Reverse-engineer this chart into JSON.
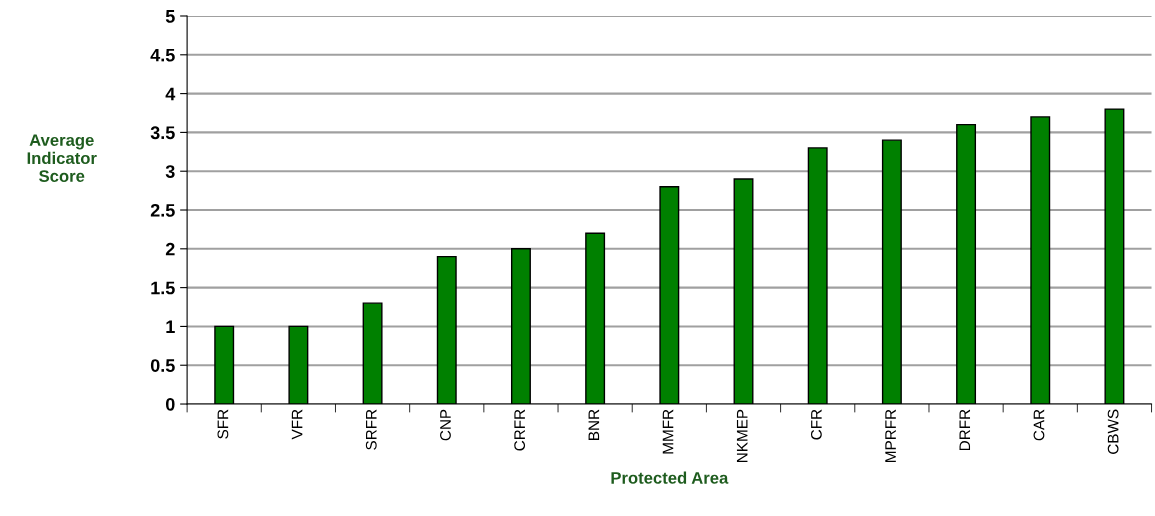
{
  "chart_data": {
    "type": "bar",
    "xlabel": "Protected Area",
    "ylabel": "Average\nIndicator\nScore",
    "categories": [
      "SFR",
      "VFR",
      "SRFR",
      "CNP",
      "CRFR",
      "BNR",
      "MMFR",
      "NKMEP",
      "CFR",
      "MPRFR",
      "DRFR",
      "CAR",
      "CBWS"
    ],
    "values": [
      1,
      1,
      1.3,
      1.9,
      2,
      2.2,
      2.8,
      2.9,
      3.3,
      3.4,
      3.6,
      3.7,
      3.8
    ],
    "color": "#008000",
    "ylim": [
      0,
      5
    ],
    "yticks": [
      0,
      0.5,
      1,
      1.5,
      2,
      2.5,
      3,
      3.5,
      4,
      4.5,
      5
    ],
    "grid": "y"
  }
}
